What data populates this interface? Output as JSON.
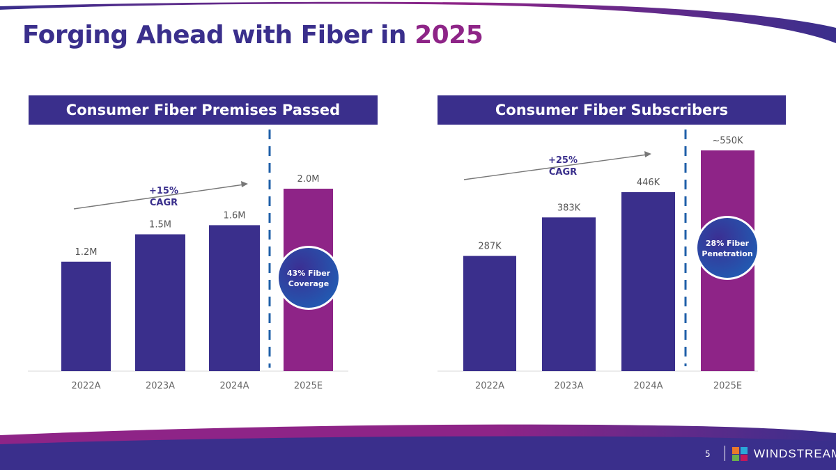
{
  "page": {
    "title_main": "Forging Ahead with Fiber in",
    "title_year": "2025",
    "page_number": "5",
    "brand": "WINDSTREAM"
  },
  "colors": {
    "primary": "#3a2f8c",
    "accent": "#8e2487",
    "divider": "#1f5fa8"
  },
  "chart_data": [
    {
      "type": "bar",
      "title": "Consumer Fiber Premises Passed",
      "categories": [
        "2022A",
        "2023A",
        "2024A",
        "2025E"
      ],
      "values": [
        1.2,
        1.5,
        1.6,
        2.0
      ],
      "labels": [
        "1.2M",
        "1.5M",
        "1.6M",
        "2.0M"
      ],
      "unit": "M",
      "bar_colors": [
        "#3a2f8c",
        "#3a2f8c",
        "#3a2f8c",
        "#8e2487"
      ],
      "ylim": [
        0,
        2.0
      ],
      "grid": false,
      "annotations": {
        "cagr": [
          "+15%",
          "CAGR"
        ],
        "badge": [
          "43% Fiber",
          "Coverage"
        ]
      }
    },
    {
      "type": "bar",
      "title": "Consumer Fiber Subscribers",
      "categories": [
        "2022A",
        "2023A",
        "2024A",
        "2025E"
      ],
      "values": [
        287,
        383,
        446,
        550
      ],
      "labels": [
        "287K",
        "383K",
        "446K",
        "~550K"
      ],
      "unit": "K",
      "bar_colors": [
        "#3a2f8c",
        "#3a2f8c",
        "#3a2f8c",
        "#8e2487"
      ],
      "ylim": [
        0,
        550
      ],
      "grid": false,
      "annotations": {
        "cagr": [
          "+25%",
          "CAGR"
        ],
        "badge": [
          "28% Fiber",
          "Penetration"
        ]
      }
    }
  ]
}
